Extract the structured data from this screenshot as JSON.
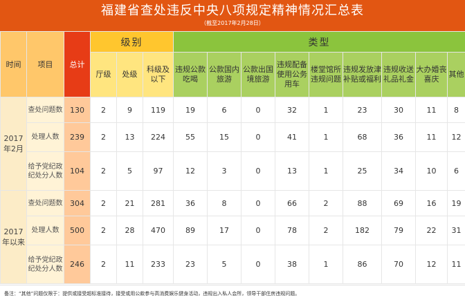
{
  "header": {
    "title": "福建省查处违反中央八项规定精神情况汇总表",
    "subtitle": "（截至2017年2月28日）"
  },
  "columns": {
    "time": "时间",
    "item": "项目",
    "total": "总计",
    "level_group": "级别",
    "type_group": "类型",
    "levels": [
      "厅级",
      "处级",
      "科级及以下"
    ],
    "types": [
      "违规公款吃喝",
      "公款国内旅游",
      "公款出国境旅游",
      "违规配备使用公务用车",
      "楼堂馆所违规问题",
      "违规发放津补贴或福利",
      "违规收送礼品礼金",
      "大办婚丧喜庆",
      "其他"
    ]
  },
  "periods": [
    {
      "label": "2017年2月",
      "rows": [
        {
          "item": "查处问题数",
          "total": "130",
          "values": [
            "2",
            "9",
            "119",
            "19",
            "6",
            "0",
            "32",
            "1",
            "23",
            "30",
            "11",
            "8"
          ]
        },
        {
          "item": "处理人数",
          "total": "239",
          "values": [
            "2",
            "13",
            "224",
            "55",
            "15",
            "0",
            "41",
            "1",
            "68",
            "36",
            "11",
            "12"
          ]
        },
        {
          "item": "给予党纪政纪处分人数",
          "total": "104",
          "values": [
            "2",
            "5",
            "97",
            "12",
            "3",
            "0",
            "13",
            "1",
            "25",
            "34",
            "10",
            "6"
          ]
        }
      ]
    },
    {
      "label": "2017年以来",
      "rows": [
        {
          "item": "查处问题数",
          "total": "304",
          "values": [
            "2",
            "21",
            "281",
            "36",
            "8",
            "0",
            "66",
            "2",
            "88",
            "69",
            "16",
            "19"
          ]
        },
        {
          "item": "处理人数",
          "total": "500",
          "values": [
            "2",
            "28",
            "470",
            "89",
            "17",
            "0",
            "78",
            "2",
            "182",
            "79",
            "22",
            "31"
          ]
        },
        {
          "item": "给予党纪政纪处分人数",
          "total": "246",
          "values": [
            "2",
            "11",
            "233",
            "23",
            "5",
            "0",
            "38",
            "1",
            "86",
            "70",
            "12",
            "11"
          ]
        }
      ]
    }
  ],
  "footnote": "备注：“其他”问题仅限于：提供或接受超标准接待，接受或用公款参与高消费娱乐健身活动，违规出入私人会所，领导干部住房违规问题。",
  "colors": {
    "title_bg": "#e25612",
    "total_header": "#e73c16",
    "level_header": "#ffc62e",
    "type_header": "#8bc43d"
  }
}
